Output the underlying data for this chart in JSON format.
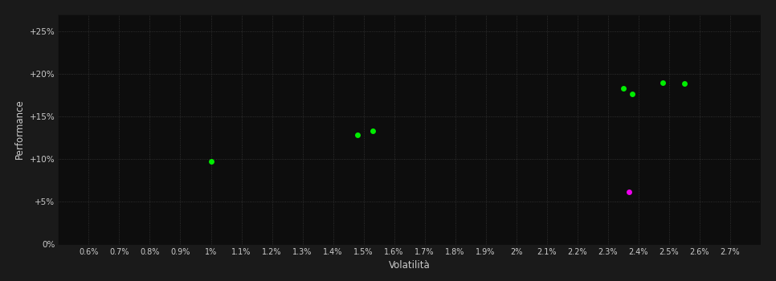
{
  "background_color": "#1a1a1a",
  "plot_bg_color": "#0d0d0d",
  "grid_color": "#3a3a3a",
  "text_color": "#cccccc",
  "xlabel": "Volatilità",
  "ylabel": "Performance",
  "xlim": [
    0.005,
    0.028
  ],
  "ylim": [
    0.0,
    0.27
  ],
  "xticks": [
    0.006,
    0.007,
    0.008,
    0.009,
    0.01,
    0.011,
    0.012,
    0.013,
    0.014,
    0.015,
    0.016,
    0.017,
    0.018,
    0.019,
    0.02,
    0.021,
    0.022,
    0.023,
    0.024,
    0.025,
    0.026,
    0.027
  ],
  "xtick_labels": [
    "0.6%",
    "0.7%",
    "0.8%",
    "0.9%",
    "1%",
    "1.1%",
    "1.2%",
    "1.3%",
    "1.4%",
    "1.5%",
    "1.6%",
    "1.7%",
    "1.8%",
    "1.9%",
    "2%",
    "2.1%",
    "2.2%",
    "2.3%",
    "2.4%",
    "2.5%",
    "2.6%",
    "2.7%"
  ],
  "yticks": [
    0.0,
    0.05,
    0.1,
    0.15,
    0.2,
    0.25
  ],
  "ytick_labels": [
    "0%",
    "+5%",
    "+10%",
    "+15%",
    "+20%",
    "+25%"
  ],
  "points_green": [
    [
      0.01,
      0.097
    ],
    [
      0.0148,
      0.128
    ],
    [
      0.0153,
      0.133
    ],
    [
      0.0235,
      0.183
    ],
    [
      0.0238,
      0.176
    ],
    [
      0.0248,
      0.19
    ],
    [
      0.0255,
      0.189
    ]
  ],
  "points_magenta": [
    [
      0.0237,
      0.062
    ]
  ],
  "point_color_green": "#00ee00",
  "point_color_magenta": "#ee00ee",
  "marker_size": 5
}
